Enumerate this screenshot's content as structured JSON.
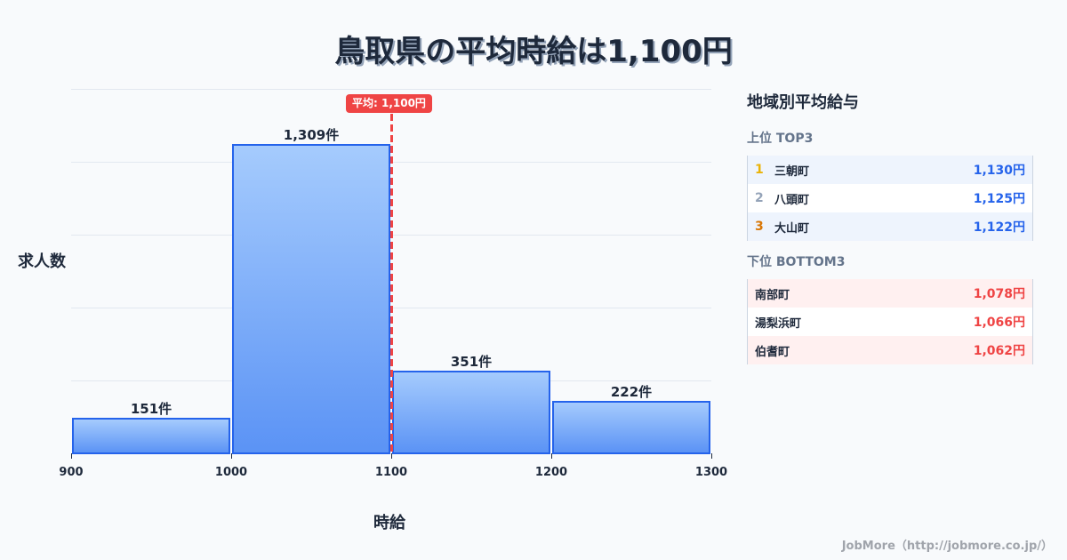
{
  "title": "鳥取県の平均時給は1,100円",
  "chart_data": {
    "type": "bar",
    "subtype": "histogram",
    "title": "鳥取県の平均時給は1,100円",
    "xlabel": "時給",
    "ylabel": "求人数",
    "bins": [
      [
        900,
        1000
      ],
      [
        1000,
        1100
      ],
      [
        1100,
        1200
      ],
      [
        1200,
        1300
      ]
    ],
    "categories": [
      "900-1000",
      "1000-1100",
      "1100-1200",
      "1200-1300"
    ],
    "values": [
      151,
      1309,
      351,
      222
    ],
    "value_labels": [
      "151件",
      "1,309件",
      "351件",
      "222件"
    ],
    "x_ticks": [
      "900",
      "1000",
      "1100",
      "1200",
      "1300"
    ],
    "xlim": [
      900,
      1300
    ],
    "ylim": [
      0,
      1540
    ],
    "grid": true,
    "annotations": [
      {
        "type": "vline",
        "x": 1100,
        "label": "平均: 1,100円",
        "color": "#ef4444",
        "style": "dashed"
      }
    ],
    "colors": {
      "bar_fill_top": "#a5cbfd",
      "bar_fill_bottom": "#5b93f5",
      "bar_border": "#2563eb"
    }
  },
  "chart": {
    "avg_label": "平均: 1,100円",
    "xlabel": "時給",
    "ylabel": "求人数"
  },
  "panel": {
    "title": "地域別平均給与",
    "top": {
      "title": "上位 TOP3",
      "rows": [
        {
          "rank": "1",
          "name": "三朝町",
          "value": "1,130円",
          "rank_color": "#eab308"
        },
        {
          "rank": "2",
          "name": "八頭町",
          "value": "1,125円",
          "rank_color": "#94a3b8"
        },
        {
          "rank": "3",
          "name": "大山町",
          "value": "1,122円",
          "rank_color": "#d97706"
        }
      ]
    },
    "bottom": {
      "title": "下位 BOTTOM3",
      "rows": [
        {
          "name": "南部町",
          "value": "1,078円"
        },
        {
          "name": "湯梨浜町",
          "value": "1,066円"
        },
        {
          "name": "伯耆町",
          "value": "1,062円"
        }
      ]
    }
  },
  "footer": "JobMore（http://jobmore.co.jp/）"
}
